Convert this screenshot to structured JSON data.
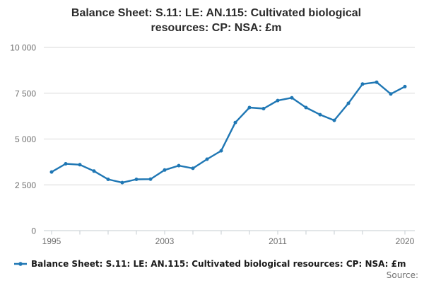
{
  "title": {
    "line1": "Balance Sheet: S.11: LE: AN.115: Cultivated biological",
    "line2": "resources: CP: NSA: £m",
    "full": "Balance Sheet: S.11: LE: AN.115: Cultivated biological resources: CP: NSA: £m"
  },
  "legend": {
    "label": "Balance Sheet: S.11: LE: AN.115: Cultivated biological resources: CP: NSA: £m"
  },
  "source_label": "Source:",
  "colors": {
    "line": "#1f77b4",
    "grid": "#d9d9d9",
    "axis": "#c6ccd2",
    "tick_label": "#6f6f6f",
    "title_text": "#2b2b2b",
    "legend_text": "#1a1a1a",
    "background": "#ffffff"
  },
  "chart_data": {
    "type": "line",
    "title": "Balance Sheet: S.11: LE: AN.115: Cultivated biological resources: CP: NSA: £m",
    "xlabel": "",
    "ylabel": "",
    "x": [
      1995,
      1996,
      1997,
      1998,
      1999,
      2000,
      2001,
      2002,
      2003,
      2004,
      2005,
      2006,
      2007,
      2008,
      2009,
      2010,
      2011,
      2012,
      2013,
      2014,
      2015,
      2016,
      2017,
      2018,
      2019,
      2020
    ],
    "series": [
      {
        "name": "Balance Sheet: S.11: LE: AN.115: Cultivated biological resources: CP: NSA: £m",
        "values": [
          3200,
          3650,
          3600,
          3250,
          2800,
          2620,
          2800,
          2810,
          3310,
          3550,
          3400,
          3900,
          4360,
          5900,
          6720,
          6660,
          7100,
          7250,
          6720,
          6330,
          6020,
          6950,
          8000,
          8100,
          7460,
          7860
        ]
      }
    ],
    "ylim": [
      0,
      10000
    ],
    "yticks": [
      0,
      2500,
      5000,
      7500,
      10000
    ],
    "ytick_labels": [
      "0",
      "2 500",
      "5 000",
      "7 500",
      "10 000"
    ],
    "xticks_minor": [
      1995,
      1997,
      1999,
      2001,
      2003,
      2005,
      2007,
      2009,
      2011,
      2013,
      2015,
      2017,
      2020
    ],
    "xtick_labels": [
      1995,
      2003,
      2011,
      2020
    ],
    "grid": "horizontal-only",
    "marker": "circle",
    "legend_position": "bottom-left"
  }
}
